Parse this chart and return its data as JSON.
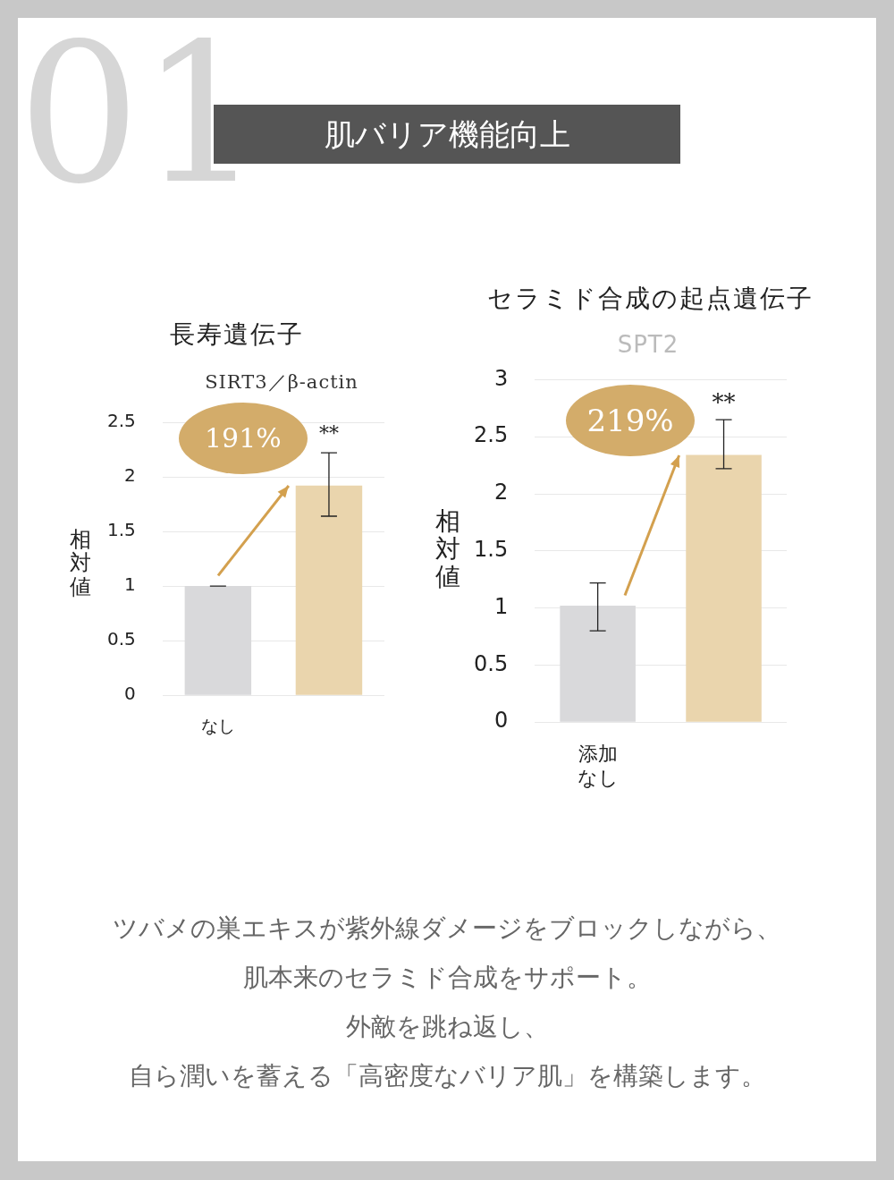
{
  "chart_data": [
    {
      "type": "other",
      "title": "肌バリア機能向上",
      "annotations": [
        "01"
      ]
    },
    {
      "type": "bar",
      "title": "長寿遺伝子",
      "subtitle": "SIRT3／β-actin",
      "ylabel": "相対値",
      "categories": [
        "なし",
        null
      ],
      "values": [
        1.0,
        1.92
      ],
      "colors": [
        "#d9d9db",
        "#ead5ad"
      ],
      "errors": [
        0,
        [
          1.64,
          2.22
        ]
      ],
      "ylim": [
        0,
        2.5
      ],
      "yticks": [
        0,
        0.5,
        1,
        1.5,
        2,
        2.5
      ],
      "grid": "y",
      "annotations": [
        "191%",
        "**"
      ]
    },
    {
      "type": "bar",
      "title": "セラミド合成の起点遺伝子",
      "subtitle": "SPT2",
      "ylabel": "相対値",
      "categories": [
        "添加なし",
        null
      ],
      "values": [
        1.02,
        2.34
      ],
      "colors": [
        "#d9d9db",
        "#ead5ad"
      ],
      "errors": [
        [
          0.8,
          1.22
        ],
        [
          2.22,
          2.65
        ]
      ],
      "ylim": [
        0,
        3
      ],
      "yticks": [
        0,
        0.5,
        1,
        1.5,
        2,
        2.5,
        3
      ],
      "grid": "y",
      "annotations": [
        "219%",
        "**"
      ]
    },
    {
      "type": "other",
      "annotations": [
        "ツバメの巣エキスが紫外線ダメージをブロックしながら、",
        "肌本来のセラミド合成をサポート。",
        "外敵を跳ね返し、",
        "自ら潤いを蓄える「高密度なバリア肌」を構築します。"
      ]
    }
  ]
}
